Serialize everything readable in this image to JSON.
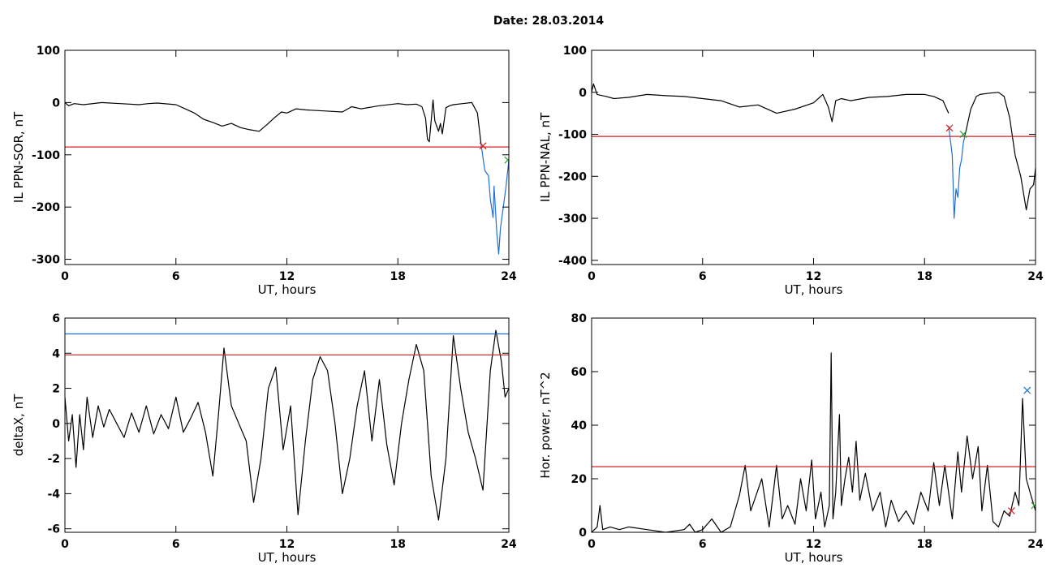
{
  "figure": {
    "title": "Date:  28.03.2014"
  },
  "chart_data": [
    {
      "type": "line",
      "xlabel": "UT, hours",
      "ylabel": "IL PPN-SOR, nT",
      "xlim": [
        0,
        24
      ],
      "ylim": [
        -310,
        100
      ],
      "xticks": [
        0,
        6,
        12,
        18,
        24
      ],
      "yticks": [
        100,
        0,
        -100,
        -200,
        -300
      ],
      "series": [
        {
          "color": "#000000",
          "x": [
            0,
            0.2,
            0.5,
            1,
            2,
            3,
            4,
            4.5,
            5,
            6,
            6.5,
            7,
            7.5,
            8,
            8.5,
            9,
            9.5,
            10,
            10.5,
            11,
            11.3,
            11.7,
            12,
            12.5,
            13,
            14,
            15,
            15.5,
            16,
            17,
            18,
            18.5,
            19,
            19.3,
            19.5,
            19.6,
            19.7,
            19.9,
            20,
            20.2,
            20.3,
            20.4,
            20.6,
            20.8,
            21,
            21.5,
            22,
            22.3,
            22.5
          ],
          "y": [
            0,
            -6,
            -2,
            -4,
            0,
            -2,
            -4,
            -2,
            -1,
            -4,
            -12,
            -20,
            -32,
            -38,
            -45,
            -40,
            -48,
            -52,
            -55,
            -40,
            -30,
            -18,
            -20,
            -12,
            -14,
            -16,
            -18,
            -8,
            -12,
            -6,
            -2,
            -4,
            -3,
            -8,
            -30,
            -70,
            -75,
            5,
            -35,
            -55,
            -40,
            -60,
            -10,
            -6,
            -4,
            -2,
            0,
            -20,
            -80
          ]
        },
        {
          "color": "#1f6fd6",
          "x": [
            22.5,
            22.7,
            22.9,
            23.0,
            23.15,
            23.2,
            23.35,
            23.45,
            23.55,
            23.7,
            23.85,
            24
          ],
          "y": [
            -80,
            -130,
            -140,
            -185,
            -220,
            -160,
            -250,
            -290,
            -240,
            -200,
            -160,
            -110
          ]
        }
      ],
      "hline": {
        "y": -85,
        "color": "#d42020"
      },
      "markers": [
        {
          "x": 22.6,
          "y": -83,
          "color": "#d42020",
          "symbol": "x"
        },
        {
          "x": 23.95,
          "y": -110,
          "color": "#28a028",
          "symbol": "x"
        }
      ]
    },
    {
      "type": "line",
      "xlabel": "UT, hours",
      "ylabel": "IL PPN-NAL, nT",
      "xlim": [
        0,
        24
      ],
      "ylim": [
        -410,
        100
      ],
      "xticks": [
        0,
        6,
        12,
        18,
        24
      ],
      "yticks": [
        100,
        0,
        -100,
        -200,
        -300,
        -400
      ],
      "series": [
        {
          "color": "#000000",
          "x": [
            0,
            0.1,
            0.3,
            0.8,
            1.2,
            2,
            3,
            4,
            5,
            6,
            7,
            8,
            9,
            10,
            11,
            12,
            12.5,
            12.8,
            13,
            13.2,
            13.5,
            14,
            15,
            16,
            17,
            18,
            18.5,
            19,
            19.3
          ],
          "y": [
            0,
            20,
            -5,
            -10,
            -15,
            -12,
            -5,
            -8,
            -10,
            -15,
            -20,
            -35,
            -30,
            -50,
            -40,
            -25,
            -5,
            -35,
            -70,
            -20,
            -15,
            -20,
            -12,
            -10,
            -5,
            -5,
            -10,
            -20,
            -50
          ]
        },
        {
          "color": "#1f6fd6",
          "x": [
            19.3,
            19.5,
            19.6,
            19.7,
            19.8,
            19.9,
            20,
            20.1,
            20.2
          ],
          "y": [
            -80,
            -150,
            -300,
            -230,
            -250,
            -180,
            -160,
            -120,
            -100
          ]
        },
        {
          "color": "#000000",
          "x": [
            20.2,
            20.5,
            20.8,
            21,
            21.5,
            22,
            22.3,
            22.6,
            22.9,
            23.2,
            23.5,
            23.7,
            23.9,
            24
          ],
          "y": [
            -100,
            -40,
            -10,
            -5,
            -2,
            0,
            -10,
            -60,
            -150,
            -200,
            -280,
            -230,
            -220,
            -180
          ]
        }
      ],
      "hline": {
        "y": -105,
        "color": "#d42020"
      },
      "markers": [
        {
          "x": 19.35,
          "y": -85,
          "color": "#d42020",
          "symbol": "x"
        },
        {
          "x": 20.1,
          "y": -100,
          "color": "#28a028",
          "symbol": "x"
        }
      ]
    },
    {
      "type": "line",
      "xlabel": "UT, hours",
      "ylabel": "deltaX, nT",
      "xlim": [
        0,
        24
      ],
      "ylim": [
        -6.2,
        6
      ],
      "xticks": [
        0,
        6,
        12,
        18,
        24
      ],
      "yticks": [
        6,
        4,
        2,
        0,
        -2,
        -4,
        -6
      ],
      "series": [
        {
          "color": "#000000",
          "x": [
            0,
            0.2,
            0.4,
            0.6,
            0.8,
            1,
            1.2,
            1.5,
            1.8,
            2.1,
            2.4,
            2.8,
            3.2,
            3.6,
            4,
            4.4,
            4.8,
            5.2,
            5.6,
            6,
            6.4,
            6.8,
            7.2,
            7.6,
            8,
            8.3,
            8.6,
            9,
            9.4,
            9.8,
            10.2,
            10.6,
            11,
            11.4,
            11.8,
            12.2,
            12.6,
            13,
            13.4,
            13.8,
            14.2,
            14.6,
            15,
            15.4,
            15.8,
            16.2,
            16.6,
            17,
            17.4,
            17.8,
            18.2,
            18.6,
            19,
            19.4,
            19.8,
            20.2,
            20.6,
            21,
            21.4,
            21.8,
            22.2,
            22.6,
            23,
            23.3,
            23.6,
            23.8,
            24
          ],
          "y": [
            1.5,
            -1,
            0.5,
            -2.5,
            0.5,
            -1.5,
            1.5,
            -0.8,
            1,
            -0.2,
            0.8,
            0,
            -0.8,
            0.6,
            -0.5,
            1,
            -0.6,
            0.5,
            -0.3,
            1.5,
            -0.5,
            0.3,
            1.2,
            -0.5,
            -3,
            0.5,
            4.3,
            1,
            0,
            -1,
            -4.5,
            -2,
            2,
            3.2,
            -1.5,
            1,
            -5.2,
            -1,
            2.5,
            3.8,
            3,
            0,
            -4,
            -2,
            1,
            3,
            -1,
            2.5,
            -1.2,
            -3.5,
            0,
            2.5,
            4.5,
            3,
            -3,
            -5.5,
            -2,
            5,
            2,
            -0.5,
            -2,
            -3.8,
            3,
            5.3,
            3.5,
            1.5,
            2
          ]
        }
      ],
      "hlines": [
        {
          "y": 3.9,
          "color": "#d42020"
        },
        {
          "y": 5.1,
          "color": "#1f6fd6"
        }
      ]
    },
    {
      "type": "line",
      "xlabel": "UT, hours",
      "ylabel": "Hor. power, nT^2",
      "xlim": [
        0,
        24
      ],
      "ylim": [
        0,
        80
      ],
      "xticks": [
        0,
        6,
        12,
        18,
        24
      ],
      "yticks": [
        80,
        60,
        40,
        20,
        0
      ],
      "series": [
        {
          "color": "#000000",
          "x": [
            0,
            0.3,
            0.45,
            0.6,
            1,
            1.5,
            2,
            3,
            4,
            5,
            5.3,
            5.6,
            6,
            6.5,
            7,
            7.5,
            8,
            8.3,
            8.6,
            8.8,
            9.2,
            9.6,
            10,
            10.3,
            10.6,
            11,
            11.3,
            11.6,
            11.9,
            12.1,
            12.4,
            12.6,
            12.85,
            12.95,
            13.05,
            13.2,
            13.4,
            13.5,
            13.7,
            13.9,
            14.1,
            14.3,
            14.5,
            14.8,
            15.2,
            15.6,
            15.9,
            16.2,
            16.6,
            17,
            17.4,
            17.8,
            18.2,
            18.5,
            18.8,
            19.1,
            19.5,
            19.8,
            20,
            20.3,
            20.6,
            20.9,
            21.1,
            21.4,
            21.7,
            22,
            22.3,
            22.6,
            22.9,
            23.1,
            23.3,
            23.5,
            23.7,
            24
          ],
          "y": [
            0,
            2,
            10,
            1,
            2,
            1,
            2,
            1,
            0,
            1,
            3,
            0,
            1,
            5,
            0,
            2,
            14,
            25,
            8,
            12,
            20,
            2,
            25,
            5,
            10,
            3,
            20,
            8,
            27,
            5,
            15,
            2,
            10,
            67,
            5,
            15,
            44,
            10,
            20,
            28,
            15,
            34,
            12,
            22,
            8,
            15,
            2,
            12,
            4,
            8,
            3,
            15,
            8,
            26,
            10,
            25,
            5,
            30,
            15,
            36,
            20,
            32,
            8,
            25,
            4,
            2,
            8,
            6,
            15,
            10,
            50,
            20,
            15,
            8
          ]
        }
      ],
      "hline": {
        "y": 24.5,
        "color": "#d42020"
      },
      "markers": [
        {
          "x": 22.7,
          "y": 8,
          "color": "#d42020",
          "symbol": "x"
        },
        {
          "x": 23.55,
          "y": 53,
          "color": "#1f6fd6",
          "symbol": "x"
        },
        {
          "x": 23.95,
          "y": 10,
          "color": "#28a028",
          "symbol": "x"
        }
      ]
    }
  ]
}
